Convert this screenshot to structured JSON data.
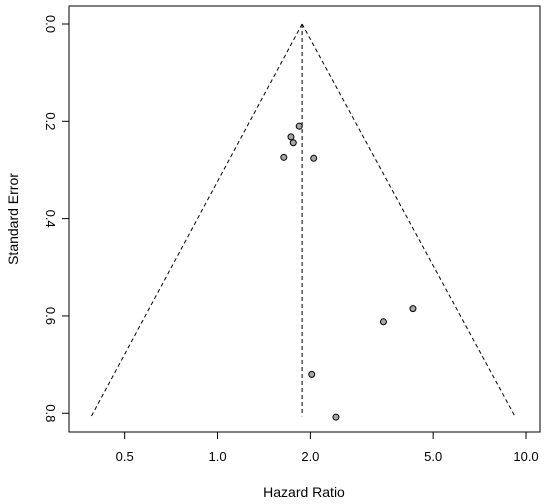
{
  "chart_data": {
    "type": "scatter",
    "title": "",
    "xlabel": "Hazard Ratio",
    "ylabel": "Standard Error",
    "x_scale": "log",
    "y_inverted": true,
    "xlim": [
      0.33,
      11.1
    ],
    "ylim": [
      0,
      0.82
    ],
    "x_ticks": [
      0.5,
      1.0,
      2.0,
      5.0,
      10.0
    ],
    "x_tick_labels": [
      "0.5",
      "1.0",
      "2.0",
      "5.0",
      "10.0"
    ],
    "y_ticks": [
      0.0,
      0.2,
      0.4,
      0.6,
      0.8
    ],
    "y_tick_labels": [
      "0.0",
      "0.2",
      "0.4",
      "0.6",
      "0.8"
    ],
    "pooled_estimate": 1.88,
    "funnel_bottom_se": 0.806,
    "funnel_bottom_left": 0.39,
    "funnel_bottom_right": 9.2,
    "grid": false,
    "points": [
      {
        "x": 1.84,
        "y": 0.21
      },
      {
        "x": 1.73,
        "y": 0.232
      },
      {
        "x": 1.76,
        "y": 0.244
      },
      {
        "x": 1.64,
        "y": 0.274
      },
      {
        "x": 2.05,
        "y": 0.276
      },
      {
        "x": 4.3,
        "y": 0.585
      },
      {
        "x": 3.45,
        "y": 0.612
      },
      {
        "x": 2.02,
        "y": 0.72
      },
      {
        "x": 2.42,
        "y": 0.808
      }
    ],
    "colors": {
      "point_fill": "#a6a6a6",
      "point_stroke": "#000000",
      "lines": "#000000"
    }
  }
}
